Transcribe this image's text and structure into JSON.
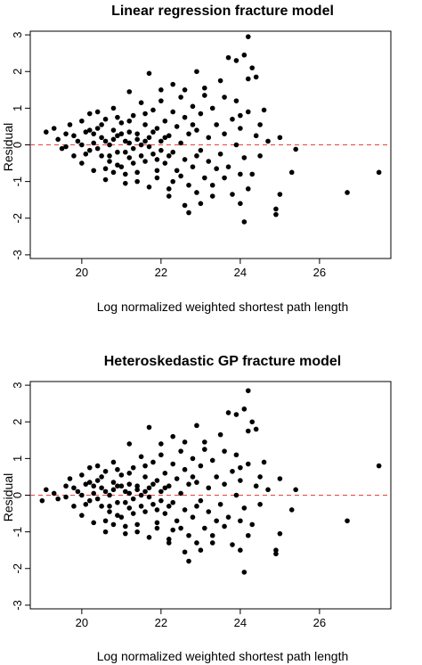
{
  "chart_data": [
    {
      "type": "scatter",
      "title": "Linear regression fracture model",
      "xlabel": "Log normalized weighted shortest path length",
      "ylabel": "Residual",
      "xlim": [
        18.7,
        27.8
      ],
      "ylim": [
        -3.1,
        3.1
      ],
      "xticks": [
        20,
        22,
        24,
        26
      ],
      "yticks": [
        -3,
        -2,
        -1,
        0,
        1,
        2,
        3
      ],
      "reference_line": {
        "y": 0,
        "style": "dashed",
        "color": "#e8413c"
      },
      "marker_color": "#000000",
      "points": [
        [
          24.2,
          2.95
        ],
        [
          23.7,
          2.38
        ],
        [
          23.9,
          2.3
        ],
        [
          24.1,
          2.45
        ],
        [
          24.3,
          2.1
        ],
        [
          24.4,
          1.85
        ],
        [
          24.2,
          1.8
        ],
        [
          23.5,
          1.75
        ],
        [
          22.9,
          2.0
        ],
        [
          21.7,
          1.95
        ],
        [
          22.3,
          1.65
        ],
        [
          22.6,
          1.5
        ],
        [
          23.1,
          1.55
        ],
        [
          22.0,
          1.5
        ],
        [
          21.2,
          1.45
        ],
        [
          23.9,
          1.2
        ],
        [
          24.6,
          0.95
        ],
        [
          24.0,
          0.8
        ],
        [
          25.0,
          0.2
        ],
        [
          25.4,
          -0.12
        ],
        [
          25.3,
          -0.75
        ],
        [
          27.5,
          -0.75
        ],
        [
          26.7,
          -1.3
        ],
        [
          25.0,
          -1.35
        ],
        [
          24.9,
          -1.75
        ],
        [
          24.9,
          -1.9
        ],
        [
          24.2,
          -1.2
        ],
        [
          24.0,
          -1.6
        ],
        [
          24.1,
          -2.1
        ],
        [
          23.3,
          -1.4
        ],
        [
          23.0,
          -1.6
        ],
        [
          22.6,
          -1.65
        ],
        [
          22.7,
          -1.85
        ],
        [
          22.2,
          -1.4
        ],
        [
          22.3,
          -1.0
        ],
        [
          23.6,
          -0.9
        ],
        [
          24.0,
          -0.8
        ],
        [
          24.5,
          -0.3
        ],
        [
          24.7,
          0.1
        ],
        [
          24.5,
          0.55
        ],
        [
          19.1,
          0.35
        ],
        [
          19.3,
          0.45
        ],
        [
          19.4,
          0.15
        ],
        [
          19.5,
          -0.1
        ],
        [
          19.6,
          0.3
        ],
        [
          19.7,
          0.55
        ],
        [
          19.8,
          -0.3
        ],
        [
          19.9,
          0.1
        ],
        [
          20.0,
          0.65
        ],
        [
          20.0,
          -0.5
        ],
        [
          20.1,
          0.35
        ],
        [
          20.2,
          -0.15
        ],
        [
          20.2,
          0.85
        ],
        [
          20.3,
          0.05
        ],
        [
          20.3,
          -0.7
        ],
        [
          20.4,
          0.45
        ],
        [
          20.5,
          -0.3
        ],
        [
          20.5,
          0.2
        ],
        [
          20.6,
          0.7
        ],
        [
          20.6,
          -0.95
        ],
        [
          20.7,
          0.0
        ],
        [
          20.7,
          -0.45
        ],
        [
          20.8,
          0.4
        ],
        [
          20.8,
          1.0
        ],
        [
          20.9,
          -0.2
        ],
        [
          20.9,
          0.25
        ],
        [
          21.0,
          -0.6
        ],
        [
          21.0,
          0.6
        ],
        [
          21.1,
          0.1
        ],
        [
          21.1,
          -1.05
        ],
        [
          21.2,
          0.35
        ],
        [
          21.2,
          -0.35
        ],
        [
          21.3,
          0.8
        ],
        [
          21.3,
          -0.1
        ],
        [
          21.4,
          0.3
        ],
        [
          21.4,
          -0.75
        ],
        [
          21.5,
          1.15
        ],
        [
          21.5,
          0.0
        ],
        [
          21.6,
          -0.45
        ],
        [
          21.6,
          0.55
        ],
        [
          21.7,
          -1.15
        ],
        [
          21.7,
          0.2
        ],
        [
          21.8,
          0.95
        ],
        [
          21.8,
          -0.25
        ],
        [
          21.9,
          0.45
        ],
        [
          21.9,
          -0.9
        ],
        [
          22.0,
          0.1
        ],
        [
          22.0,
          1.2
        ],
        [
          22.1,
          -0.5
        ],
        [
          22.1,
          0.65
        ],
        [
          22.2,
          0.25
        ],
        [
          22.2,
          -1.2
        ],
        [
          22.3,
          0.9
        ],
        [
          22.3,
          -0.2
        ],
        [
          22.4,
          0.5
        ],
        [
          22.4,
          -0.7
        ],
        [
          22.5,
          1.3
        ],
        [
          22.5,
          0.05
        ],
        [
          22.6,
          -0.4
        ],
        [
          22.6,
          0.75
        ],
        [
          22.7,
          -1.1
        ],
        [
          22.7,
          0.3
        ],
        [
          22.8,
          1.05
        ],
        [
          22.8,
          -0.6
        ],
        [
          22.9,
          0.4
        ],
        [
          22.9,
          -1.3
        ],
        [
          23.0,
          0.85
        ],
        [
          23.0,
          -0.15
        ],
        [
          23.1,
          1.35
        ],
        [
          23.1,
          -0.9
        ],
        [
          23.2,
          0.2
        ],
        [
          23.2,
          -0.45
        ],
        [
          23.3,
          1.0
        ],
        [
          23.3,
          -1.1
        ],
        [
          23.4,
          0.55
        ],
        [
          23.5,
          -0.25
        ],
        [
          23.6,
          1.3
        ],
        [
          23.6,
          0.3
        ],
        [
          23.7,
          -0.6
        ],
        [
          23.8,
          0.7
        ],
        [
          23.8,
          -1.35
        ],
        [
          23.9,
          0.0
        ],
        [
          24.0,
          0.45
        ],
        [
          24.1,
          -0.35
        ],
        [
          24.2,
          0.9
        ],
        [
          24.3,
          -0.8
        ],
        [
          24.4,
          0.25
        ],
        [
          19.6,
          -0.05
        ],
        [
          19.8,
          0.25
        ],
        [
          20.0,
          0.0
        ],
        [
          20.1,
          -0.25
        ],
        [
          20.3,
          0.3
        ],
        [
          20.4,
          -0.1
        ],
        [
          20.5,
          0.55
        ],
        [
          20.6,
          0.1
        ],
        [
          20.7,
          -0.3
        ],
        [
          20.8,
          0.15
        ],
        [
          20.9,
          -0.55
        ],
        [
          21.0,
          0.3
        ],
        [
          21.1,
          -0.2
        ],
        [
          21.2,
          0.05
        ],
        [
          21.3,
          -0.5
        ],
        [
          21.4,
          0.15
        ],
        [
          21.5,
          -0.3
        ],
        [
          21.6,
          0.1
        ],
        [
          21.7,
          -0.05
        ],
        [
          21.8,
          0.35
        ],
        [
          21.9,
          -0.4
        ],
        [
          22.0,
          -0.15
        ],
        [
          22.1,
          0.2
        ],
        [
          22.2,
          -0.3
        ],
        [
          20.4,
          0.9
        ],
        [
          20.9,
          0.75
        ],
        [
          21.6,
          0.85
        ],
        [
          21.1,
          -0.8
        ],
        [
          20.6,
          -0.65
        ],
        [
          21.4,
          -1.0
        ],
        [
          20.2,
          0.4
        ],
        [
          20.8,
          -0.75
        ],
        [
          21.9,
          -0.7
        ],
        [
          21.2,
          0.65
        ],
        [
          22.5,
          -0.85
        ],
        [
          22.8,
          0.55
        ],
        [
          23.4,
          -0.65
        ],
        [
          22.9,
          -0.3
        ]
      ]
    },
    {
      "type": "scatter",
      "title": "Heteroskedastic GP fracture model",
      "xlabel": "Log normalized weighted shortest path length",
      "ylabel": "Residual",
      "xlim": [
        18.7,
        27.8
      ],
      "ylim": [
        -3.1,
        3.1
      ],
      "xticks": [
        20,
        22,
        24,
        26
      ],
      "yticks": [
        -3,
        -2,
        -1,
        0,
        1,
        2,
        3
      ],
      "reference_line": {
        "y": 0,
        "style": "dashed",
        "color": "#e8413c"
      },
      "marker_color": "#000000",
      "points": [
        [
          24.2,
          2.85
        ],
        [
          23.7,
          2.25
        ],
        [
          23.9,
          2.2
        ],
        [
          24.1,
          2.35
        ],
        [
          24.3,
          2.0
        ],
        [
          24.4,
          1.8
        ],
        [
          24.2,
          1.75
        ],
        [
          23.5,
          1.65
        ],
        [
          22.9,
          1.9
        ],
        [
          21.7,
          1.85
        ],
        [
          22.3,
          1.6
        ],
        [
          22.6,
          1.45
        ],
        [
          23.1,
          1.45
        ],
        [
          22.0,
          1.4
        ],
        [
          21.2,
          1.4
        ],
        [
          23.9,
          1.1
        ],
        [
          24.6,
          0.9
        ],
        [
          24.0,
          0.75
        ],
        [
          25.0,
          0.45
        ],
        [
          25.4,
          0.15
        ],
        [
          25.3,
          -0.4
        ],
        [
          27.5,
          0.8
        ],
        [
          26.7,
          -0.7
        ],
        [
          25.0,
          -1.05
        ],
        [
          24.9,
          -1.5
        ],
        [
          24.9,
          -1.6
        ],
        [
          24.2,
          -1.1
        ],
        [
          24.0,
          -1.5
        ],
        [
          24.1,
          -2.1
        ],
        [
          23.3,
          -1.3
        ],
        [
          23.0,
          -1.5
        ],
        [
          22.6,
          -1.55
        ],
        [
          22.7,
          -1.8
        ],
        [
          22.2,
          -1.3
        ],
        [
          22.3,
          -0.95
        ],
        [
          23.6,
          -0.85
        ],
        [
          24.0,
          -0.7
        ],
        [
          24.5,
          -0.25
        ],
        [
          24.7,
          0.15
        ],
        [
          24.5,
          0.5
        ],
        [
          19.0,
          -0.15
        ],
        [
          19.1,
          0.15
        ],
        [
          19.3,
          0.05
        ],
        [
          19.4,
          -0.1
        ],
        [
          19.6,
          0.25
        ],
        [
          19.7,
          0.45
        ],
        [
          19.8,
          -0.3
        ],
        [
          19.9,
          0.1
        ],
        [
          20.0,
          0.55
        ],
        [
          20.0,
          -0.55
        ],
        [
          20.1,
          0.3
        ],
        [
          20.2,
          -0.15
        ],
        [
          20.2,
          0.75
        ],
        [
          20.3,
          0.05
        ],
        [
          20.3,
          -0.75
        ],
        [
          20.4,
          0.4
        ],
        [
          20.5,
          -0.3
        ],
        [
          20.5,
          0.2
        ],
        [
          20.6,
          0.65
        ],
        [
          20.6,
          -1.0
        ],
        [
          20.7,
          0.0
        ],
        [
          20.7,
          -0.45
        ],
        [
          20.8,
          0.35
        ],
        [
          20.8,
          0.9
        ],
        [
          20.9,
          -0.2
        ],
        [
          20.9,
          0.25
        ],
        [
          21.0,
          -0.6
        ],
        [
          21.0,
          0.55
        ],
        [
          21.1,
          0.1
        ],
        [
          21.1,
          -1.05
        ],
        [
          21.2,
          0.3
        ],
        [
          21.2,
          -0.35
        ],
        [
          21.3,
          0.75
        ],
        [
          21.3,
          -0.1
        ],
        [
          21.4,
          0.25
        ],
        [
          21.4,
          -0.8
        ],
        [
          21.5,
          1.05
        ],
        [
          21.5,
          0.0
        ],
        [
          21.6,
          -0.45
        ],
        [
          21.6,
          0.5
        ],
        [
          21.7,
          -1.15
        ],
        [
          21.7,
          0.2
        ],
        [
          21.8,
          0.9
        ],
        [
          21.8,
          -0.25
        ],
        [
          21.9,
          0.4
        ],
        [
          21.9,
          -0.9
        ],
        [
          22.0,
          0.1
        ],
        [
          22.0,
          1.1
        ],
        [
          22.1,
          -0.5
        ],
        [
          22.1,
          0.6
        ],
        [
          22.2,
          0.25
        ],
        [
          22.2,
          -1.2
        ],
        [
          22.3,
          0.85
        ],
        [
          22.3,
          -0.2
        ],
        [
          22.4,
          0.45
        ],
        [
          22.4,
          -0.7
        ],
        [
          22.5,
          1.2
        ],
        [
          22.5,
          0.05
        ],
        [
          22.6,
          -0.4
        ],
        [
          22.6,
          0.7
        ],
        [
          22.7,
          -1.1
        ],
        [
          22.7,
          0.3
        ],
        [
          22.8,
          1.0
        ],
        [
          22.8,
          -0.6
        ],
        [
          22.9,
          0.35
        ],
        [
          22.9,
          -1.3
        ],
        [
          23.0,
          0.8
        ],
        [
          23.0,
          -0.15
        ],
        [
          23.1,
          1.25
        ],
        [
          23.1,
          -0.9
        ],
        [
          23.2,
          0.2
        ],
        [
          23.2,
          -0.45
        ],
        [
          23.3,
          0.95
        ],
        [
          23.3,
          -1.1
        ],
        [
          23.4,
          0.5
        ],
        [
          23.5,
          -0.25
        ],
        [
          23.6,
          1.2
        ],
        [
          23.6,
          0.3
        ],
        [
          23.7,
          -0.6
        ],
        [
          23.8,
          0.65
        ],
        [
          23.8,
          -1.35
        ],
        [
          23.9,
          0.0
        ],
        [
          24.0,
          0.4
        ],
        [
          24.1,
          -0.35
        ],
        [
          24.2,
          0.85
        ],
        [
          24.3,
          -0.8
        ],
        [
          24.4,
          0.25
        ],
        [
          19.6,
          -0.05
        ],
        [
          19.8,
          0.2
        ],
        [
          20.0,
          0.0
        ],
        [
          20.1,
          -0.25
        ],
        [
          20.3,
          0.25
        ],
        [
          20.4,
          -0.1
        ],
        [
          20.5,
          0.5
        ],
        [
          20.6,
          0.1
        ],
        [
          20.7,
          -0.3
        ],
        [
          20.8,
          0.15
        ],
        [
          20.9,
          -0.55
        ],
        [
          21.0,
          0.25
        ],
        [
          21.1,
          -0.2
        ],
        [
          21.2,
          0.05
        ],
        [
          21.3,
          -0.5
        ],
        [
          21.4,
          0.15
        ],
        [
          21.5,
          -0.3
        ],
        [
          21.6,
          0.1
        ],
        [
          21.7,
          -0.05
        ],
        [
          21.8,
          0.3
        ],
        [
          21.9,
          -0.4
        ],
        [
          22.0,
          -0.15
        ],
        [
          22.1,
          0.2
        ],
        [
          22.2,
          -0.3
        ],
        [
          20.4,
          0.8
        ],
        [
          20.9,
          0.7
        ],
        [
          21.6,
          0.8
        ],
        [
          21.1,
          -0.85
        ],
        [
          20.6,
          -0.7
        ],
        [
          21.4,
          -1.0
        ],
        [
          20.2,
          0.35
        ],
        [
          20.8,
          -0.8
        ],
        [
          21.9,
          -0.75
        ],
        [
          21.2,
          0.6
        ],
        [
          22.5,
          -0.9
        ],
        [
          22.8,
          0.5
        ],
        [
          23.4,
          -0.7
        ],
        [
          22.9,
          -0.3
        ]
      ]
    }
  ]
}
